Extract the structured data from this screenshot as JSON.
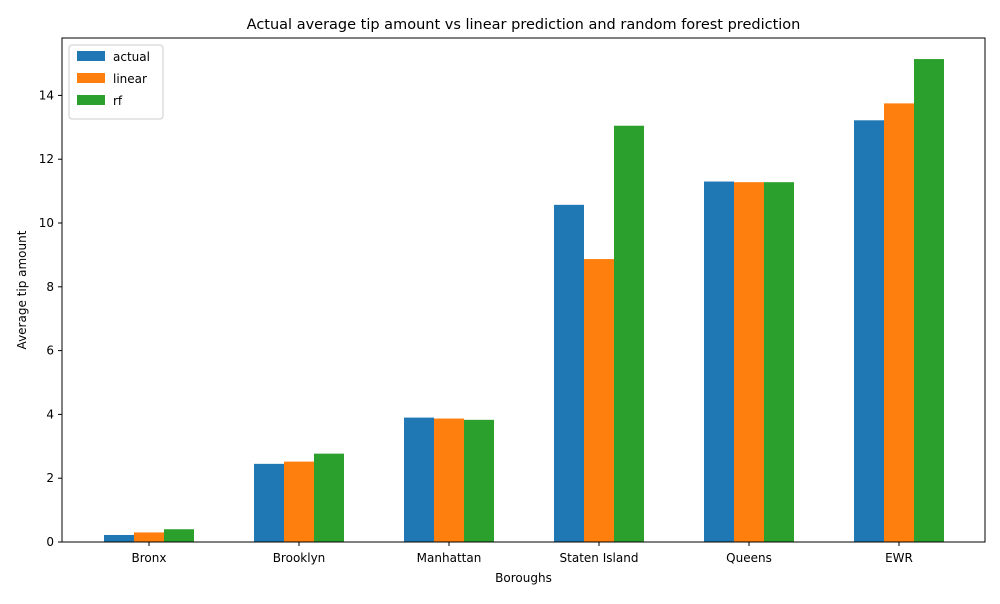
{
  "chart_data": {
    "type": "bar",
    "title": "Actual average tip amount vs linear prediction and random forest prediction",
    "xlabel": "Boroughs",
    "ylabel": "Average tip amount",
    "categories": [
      "Bronx",
      "Brooklyn",
      "Manhattan",
      "Staten Island",
      "Queens",
      "EWR"
    ],
    "ylim": [
      0,
      15.8
    ],
    "yticks": [
      0,
      2,
      4,
      6,
      8,
      10,
      12,
      14
    ],
    "grid": false,
    "legend_position": "top-left",
    "series": [
      {
        "name": "actual",
        "color": "#1f77b4",
        "values": [
          0.22,
          2.45,
          3.9,
          10.57,
          11.3,
          13.22
        ]
      },
      {
        "name": "linear",
        "color": "#ff7f0e",
        "values": [
          0.3,
          2.52,
          3.87,
          8.87,
          11.28,
          13.75
        ]
      },
      {
        "name": "rf",
        "color": "#2ca02c",
        "values": [
          0.4,
          2.77,
          3.83,
          13.05,
          11.28,
          15.14
        ]
      }
    ]
  }
}
